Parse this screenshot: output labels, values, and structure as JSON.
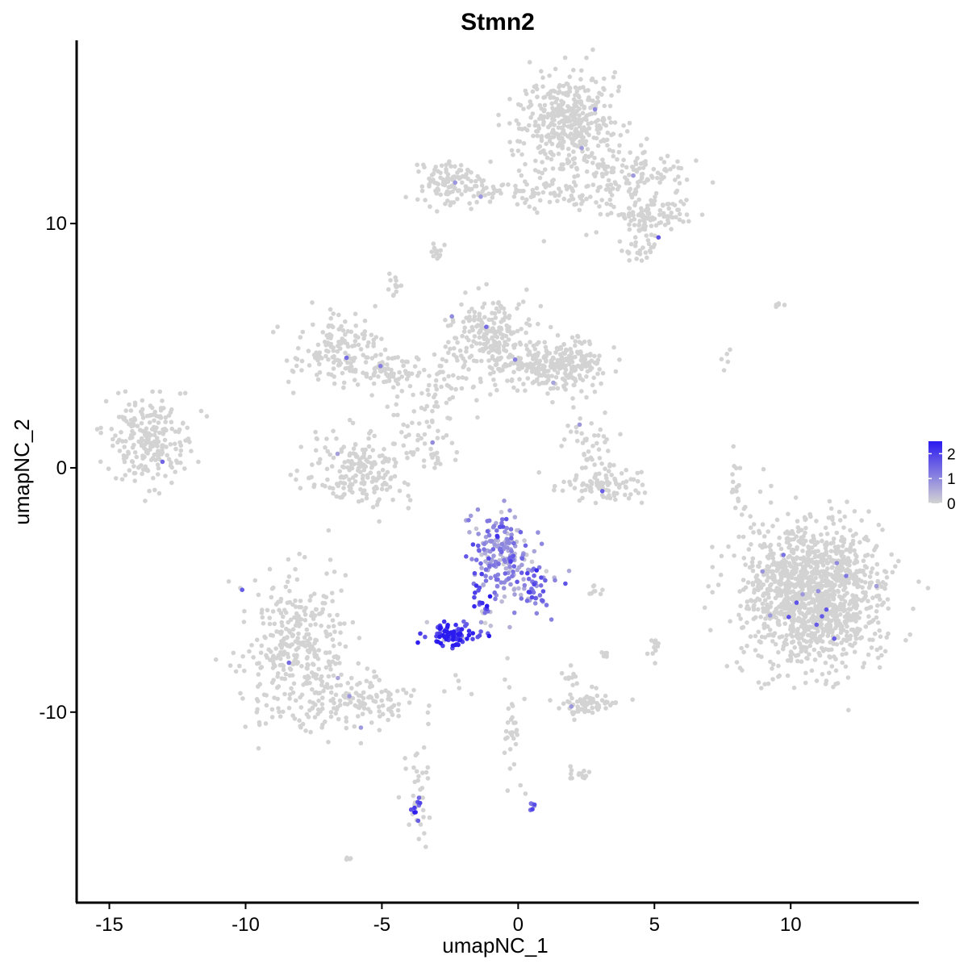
{
  "chart_data": {
    "type": "scatter",
    "title": "Stmn2",
    "xlabel": "umapNC_1",
    "ylabel": "umapNC_2",
    "xlim": [
      -16.2,
      14.7
    ],
    "ylim": [
      -17.8,
      17.5
    ],
    "x_ticks": [
      -15,
      -10,
      -5,
      0,
      5,
      10
    ],
    "x_tick_labels": [
      "-15",
      "-10",
      "-5",
      "0",
      "5",
      "10"
    ],
    "y_ticks": [
      -10,
      0,
      10
    ],
    "y_tick_labels": [
      "-10",
      "0",
      "10"
    ],
    "grid": false,
    "legend_position": "right",
    "colors": {
      "low": "#d3d3d3",
      "high": "#2b1af0",
      "axis": "#000000"
    },
    "color_scale": {
      "min": 0,
      "max": 2.5,
      "ticks": [
        0,
        1,
        2
      ],
      "tick_labels": [
        "0",
        "1",
        "2"
      ]
    },
    "clusters": [
      {
        "cx": -13.5,
        "cy": 1.0,
        "sx": 0.75,
        "sy": 0.9,
        "n": 220,
        "expr_level": 0
      },
      {
        "cx": -8.2,
        "cy": -7.5,
        "sx": 1.0,
        "sy": 1.5,
        "n": 360,
        "expr_level": 0
      },
      {
        "cx": -5.5,
        "cy": -9.5,
        "sx": 1.3,
        "sy": 0.5,
        "n": 120,
        "expr_level": 0
      },
      {
        "cx": -3.7,
        "cy": -13.5,
        "sx": 0.25,
        "sy": 1.1,
        "n": 35,
        "expr_level": 0
      },
      {
        "cx": -6.5,
        "cy": 4.8,
        "sx": 0.8,
        "sy": 0.8,
        "n": 150,
        "expr_level": 0
      },
      {
        "cx": -4.8,
        "cy": 4.0,
        "sx": 0.5,
        "sy": 0.3,
        "n": 45,
        "expr_level": 0
      },
      {
        "cx": -3.2,
        "cy": 3.5,
        "sx": 1.1,
        "sy": 0.9,
        "n": 90,
        "expr_level": 0
      },
      {
        "cx": -5.8,
        "cy": 0.0,
        "sx": 1.1,
        "sy": 0.8,
        "n": 200,
        "expr_level": 0
      },
      {
        "cx": -1.0,
        "cy": 5.3,
        "sx": 0.75,
        "sy": 0.8,
        "n": 220,
        "expr_level": 0
      },
      {
        "cx": 1.8,
        "cy": 4.2,
        "sx": 0.8,
        "sy": 0.6,
        "n": 200,
        "expr_level": 0
      },
      {
        "cx": 0.3,
        "cy": 4.2,
        "sx": 0.8,
        "sy": 0.4,
        "n": 80,
        "expr_level": 0
      },
      {
        "cx": 2.7,
        "cy": 0.8,
        "sx": 0.5,
        "sy": 0.8,
        "n": 50,
        "expr_level": 0
      },
      {
        "cx": 3.2,
        "cy": -0.7,
        "sx": 0.8,
        "sy": 0.35,
        "n": 90,
        "expr_level": 0
      },
      {
        "cx": -6.2,
        "cy": -16.0,
        "sx": 0.1,
        "sy": 0.05,
        "n": 5,
        "expr_level": 0
      },
      {
        "cx": 1.8,
        "cy": 14.3,
        "sx": 0.9,
        "sy": 0.9,
        "n": 330,
        "expr_level": 0
      },
      {
        "cx": 2.3,
        "cy": 12.2,
        "sx": 1.2,
        "sy": 1.0,
        "n": 160,
        "expr_level": 0
      },
      {
        "cx": -2.5,
        "cy": 11.7,
        "sx": 0.6,
        "sy": 0.45,
        "n": 100,
        "expr_level": 0
      },
      {
        "cx": -0.4,
        "cy": 11.3,
        "sx": 1.1,
        "sy": 0.25,
        "n": 60,
        "expr_level": 0
      },
      {
        "cx": 4.9,
        "cy": 10.3,
        "sx": 0.8,
        "sy": 0.45,
        "n": 110,
        "expr_level": 0
      },
      {
        "cx": 4.7,
        "cy": 12.0,
        "sx": 0.9,
        "sy": 0.4,
        "n": 80,
        "expr_level": 0
      },
      {
        "cx": 4.6,
        "cy": 9.0,
        "sx": 0.35,
        "sy": 0.3,
        "n": 25,
        "expr_level": 0
      },
      {
        "cx": -2.9,
        "cy": 8.9,
        "sx": 0.15,
        "sy": 0.25,
        "n": 12,
        "expr_level": 0
      },
      {
        "cx": -4.6,
        "cy": 7.4,
        "sx": 0.15,
        "sy": 0.3,
        "n": 12,
        "expr_level": 0
      },
      {
        "cx": 10.8,
        "cy": -5.1,
        "sx": 1.25,
        "sy": 1.45,
        "n": 1300,
        "expr_level": 0
      },
      {
        "cx": 8.0,
        "cy": -0.8,
        "sx": 0.15,
        "sy": 0.7,
        "n": 18,
        "expr_level": 0
      },
      {
        "cx": 9.6,
        "cy": 6.6,
        "sx": 0.2,
        "sy": 0.1,
        "n": 5,
        "expr_level": 0
      },
      {
        "cx": 7.7,
        "cy": 4.6,
        "sx": 0.15,
        "sy": 0.3,
        "n": 5,
        "expr_level": 0
      },
      {
        "cx": 2.5,
        "cy": -9.6,
        "sx": 0.5,
        "sy": 0.25,
        "n": 70,
        "expr_level": 0
      },
      {
        "cx": 2.0,
        "cy": -8.6,
        "sx": 0.2,
        "sy": 0.2,
        "n": 10,
        "expr_level": 0
      },
      {
        "cx": 2.3,
        "cy": -12.5,
        "sx": 0.2,
        "sy": 0.2,
        "n": 15,
        "expr_level": 0
      },
      {
        "cx": 0.5,
        "cy": -13.9,
        "sx": 0.1,
        "sy": 0.1,
        "n": 6,
        "expr_level": 1.2
      },
      {
        "cx": -0.2,
        "cy": -11.0,
        "sx": 0.2,
        "sy": 1.2,
        "n": 30,
        "expr_level": 0
      },
      {
        "cx": 5.0,
        "cy": -7.5,
        "sx": 0.12,
        "sy": 0.3,
        "n": 10,
        "expr_level": 0
      },
      {
        "cx": 3.2,
        "cy": -7.7,
        "sx": 0.15,
        "sy": 0.2,
        "n": 6,
        "expr_level": 0
      },
      {
        "cx": 2.8,
        "cy": -5.0,
        "sx": 0.2,
        "sy": 0.1,
        "n": 8,
        "expr_level": 0
      },
      {
        "cx": -3.0,
        "cy": 1.0,
        "sx": 0.4,
        "sy": 0.6,
        "n": 25,
        "expr_level": 0
      },
      {
        "cx": -0.6,
        "cy": -3.6,
        "sx": 0.55,
        "sy": 0.8,
        "n": 200,
        "expr_level": 1.0
      },
      {
        "cx": 0.7,
        "cy": -4.9,
        "sx": 0.4,
        "sy": 0.5,
        "n": 40,
        "expr_level": 1.4
      },
      {
        "cx": -1.3,
        "cy": -5.8,
        "sx": 0.2,
        "sy": 0.6,
        "n": 25,
        "expr_level": 1.8
      },
      {
        "cx": -2.5,
        "cy": -6.9,
        "sx": 0.45,
        "sy": 0.25,
        "n": 90,
        "expr_level": 2.1
      },
      {
        "cx": -3.7,
        "cy": -13.8,
        "sx": 0.1,
        "sy": 0.4,
        "n": 8,
        "expr_level": 1.8
      }
    ]
  }
}
